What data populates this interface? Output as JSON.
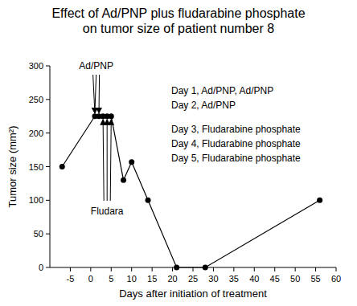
{
  "chart_data": {
    "type": "line",
    "title": [
      "Effect of Ad/PNP plus fludarabine phosphate",
      "on tumor size of patient number 8"
    ],
    "x_label": "Days after initiation of treatment",
    "y_label": "Tumor size (mm²)",
    "x": [
      -7,
      1,
      2,
      3,
      4,
      5,
      8,
      10,
      14,
      21,
      28,
      56
    ],
    "series": [
      {
        "name": "Tumor size",
        "color": "#000000",
        "marker": "circle",
        "line_style": "solid",
        "values": [
          150,
          225,
          225,
          225,
          225,
          225,
          130,
          157,
          100,
          0,
          0,
          100
        ]
      }
    ],
    "xlim": [
      -10,
      60
    ],
    "xticks": [
      -5,
      0,
      5,
      10,
      15,
      20,
      25,
      30,
      35,
      40,
      45,
      50,
      55,
      60
    ],
    "ylim": [
      0,
      300
    ],
    "yticks": [
      0,
      50,
      100,
      150,
      200,
      250,
      300
    ],
    "grid": false,
    "annotations": [
      {
        "text": "Ad/PNP",
        "days": [
          1,
          1,
          2
        ],
        "position": "above"
      },
      {
        "text": "Fludara",
        "days": [
          3,
          4,
          5
        ],
        "position": "below"
      }
    ],
    "notes": [
      "Day 1, Ad/PNP, Ad/PNP",
      "Day 2, Ad/PNP",
      "Day 3, Fludarabine phosphate",
      "Day 4, Fludarabine phosphate",
      "Day 5, Fludarabine phosphate"
    ]
  }
}
